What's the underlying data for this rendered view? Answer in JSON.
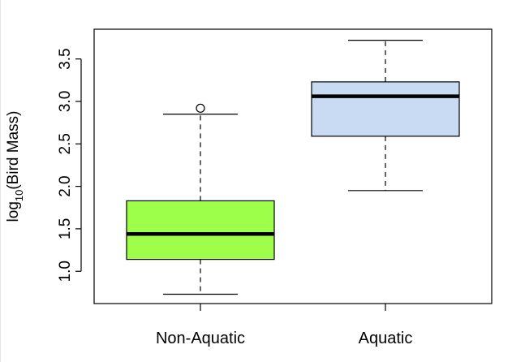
{
  "chart_data": {
    "type": "boxplot",
    "title": "",
    "xlabel": "",
    "ylabel": {
      "prefix": "log",
      "subscript": "10",
      "suffix": "(Bird Mass)"
    },
    "ylim": [
      0.62,
      3.85
    ],
    "yticks": [
      1.0,
      1.5,
      2.0,
      2.5,
      3.0,
      3.5
    ],
    "ytick_labels": [
      "1.0",
      "1.5",
      "2.0",
      "2.5",
      "3.0",
      "3.5"
    ],
    "grid": false,
    "legend": "none",
    "categories": [
      "Non-Aquatic",
      "Aquatic"
    ],
    "boxes": [
      {
        "category": "Non-Aquatic",
        "whisker_low": 0.73,
        "q1": 1.14,
        "median": 1.44,
        "q3": 1.83,
        "whisker_high": 2.85,
        "outliers": [
          2.92
        ],
        "fill": "#9eff4a"
      },
      {
        "category": "Aquatic",
        "whisker_low": 1.95,
        "q1": 2.59,
        "median": 3.06,
        "q3": 3.23,
        "whisker_high": 3.72,
        "outliers": [],
        "fill": "#c9daf3"
      }
    ]
  }
}
